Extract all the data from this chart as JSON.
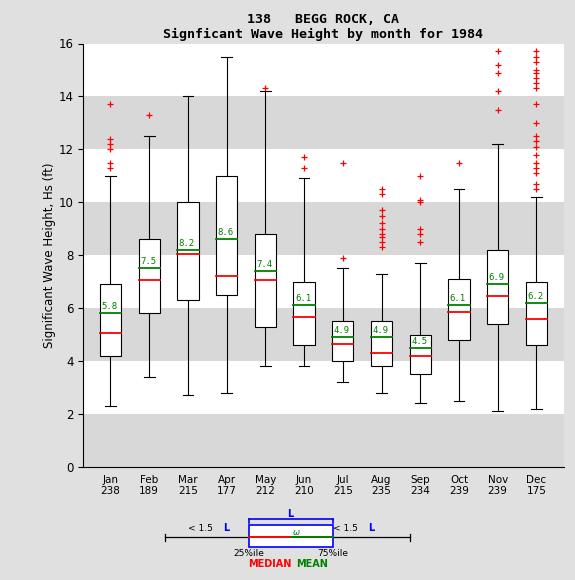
{
  "title1": "138   BEGG ROCK, CA",
  "title2": "Signficant Wave Height by month for 1984",
  "ylabel": "Significant Wave Height, Hs (ft)",
  "months": [
    "Jan",
    "Feb",
    "Mar",
    "Apr",
    "May",
    "Jun",
    "Jul",
    "Aug",
    "Sep",
    "Oct",
    "Nov",
    "Dec"
  ],
  "counts": [
    238,
    189,
    215,
    177,
    212,
    210,
    215,
    235,
    234,
    239,
    239,
    175
  ],
  "ylim": [
    0,
    16
  ],
  "yticks": [
    0,
    2,
    4,
    6,
    8,
    10,
    12,
    14,
    16
  ],
  "means": [
    5.8,
    7.5,
    8.2,
    8.6,
    7.4,
    6.1,
    4.9,
    4.9,
    4.5,
    6.1,
    6.9,
    6.2
  ],
  "medians": [
    5.05,
    7.05,
    8.05,
    7.2,
    7.05,
    5.65,
    4.65,
    4.3,
    4.2,
    5.85,
    6.45,
    5.6
  ],
  "q1": [
    4.2,
    5.8,
    6.3,
    6.5,
    5.3,
    4.6,
    4.0,
    3.8,
    3.5,
    4.8,
    5.4,
    4.6
  ],
  "q3": [
    6.9,
    8.6,
    10.0,
    11.0,
    8.8,
    7.0,
    5.5,
    5.5,
    5.0,
    7.1,
    8.2,
    7.0
  ],
  "whisker_low": [
    2.3,
    3.4,
    2.7,
    2.8,
    3.8,
    3.8,
    3.2,
    2.8,
    2.4,
    2.5,
    2.1,
    2.2
  ],
  "whisker_high": [
    11.0,
    12.5,
    14.0,
    15.5,
    14.2,
    10.9,
    7.5,
    7.3,
    7.7,
    10.5,
    12.2,
    10.2
  ],
  "outliers": [
    [
      13.7,
      12.4,
      12.2,
      12.0,
      11.5,
      11.3
    ],
    [
      13.3
    ],
    [],
    [],
    [
      14.3
    ],
    [
      11.7,
      11.3
    ],
    [
      11.5,
      7.9
    ],
    [
      10.5,
      10.3,
      9.7,
      9.5,
      9.2,
      9.0,
      8.8,
      8.7,
      8.5,
      8.3
    ],
    [
      11.0,
      10.1,
      10.0,
      9.0,
      8.8,
      8.5
    ],
    [
      11.5
    ],
    [
      15.7,
      15.2,
      14.9,
      14.2,
      13.5
    ],
    [
      15.7,
      15.5,
      15.3,
      15.0,
      14.9,
      14.7,
      14.5,
      14.3,
      13.7,
      13.0,
      12.5,
      12.3,
      12.1,
      11.8,
      11.5,
      11.3,
      11.1,
      10.7,
      10.5
    ]
  ],
  "bg_outer": "#e0e0e0",
  "bg_white": "#ffffff",
  "bg_gray": "#d8d8d8",
  "box_fc": "white",
  "median_color": "red",
  "mean_color": "green",
  "outlier_color": "red"
}
